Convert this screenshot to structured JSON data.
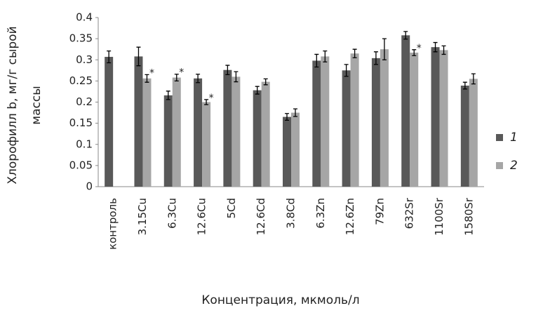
{
  "chart_data": {
    "type": "bar",
    "y_label": [
      "Хлорофилл b, мг/г сырой",
      "массы"
    ],
    "x_label": "Концентрация, мкмоль/л",
    "categories": [
      "контроль",
      "3.15Cu",
      "6.3Cu",
      "12.6Cu",
      "5Cd",
      "12.6Cd",
      "3.8Cd",
      "6.3Zn",
      "12.6Zn",
      "79Zn",
      "632Sr",
      "1100Sr",
      "1580Sr"
    ],
    "series": [
      {
        "name": "1",
        "color": "#595959",
        "values": [
          0.307,
          0.308,
          0.216,
          0.256,
          0.276,
          0.228,
          0.165,
          0.298,
          0.275,
          0.304,
          0.358,
          0.33,
          0.239
        ],
        "errors": [
          0.014,
          0.022,
          0.01,
          0.01,
          0.011,
          0.009,
          0.008,
          0.015,
          0.014,
          0.015,
          0.009,
          0.011,
          0.008
        ],
        "marks": [
          null,
          null,
          null,
          null,
          null,
          null,
          null,
          null,
          null,
          null,
          null,
          null,
          null
        ]
      },
      {
        "name": "2",
        "color": "#a6a6a6",
        "values": [
          null,
          0.256,
          0.258,
          0.2,
          0.26,
          0.248,
          0.175,
          0.308,
          0.315,
          0.325,
          0.317,
          0.323,
          0.255
        ],
        "errors": [
          null,
          0.009,
          0.008,
          0.006,
          0.012,
          0.007,
          0.009,
          0.013,
          0.01,
          0.025,
          0.007,
          0.01,
          0.012
        ],
        "marks": [
          null,
          "*",
          "*",
          "*",
          null,
          null,
          null,
          null,
          null,
          null,
          "*",
          null,
          null
        ]
      }
    ],
    "ylim": [
      0,
      0.4
    ],
    "yticks": [
      0,
      0.05,
      0.1,
      0.15,
      0.2,
      0.25,
      0.3,
      0.35,
      0.4
    ],
    "grid": false,
    "legend": "right"
  }
}
